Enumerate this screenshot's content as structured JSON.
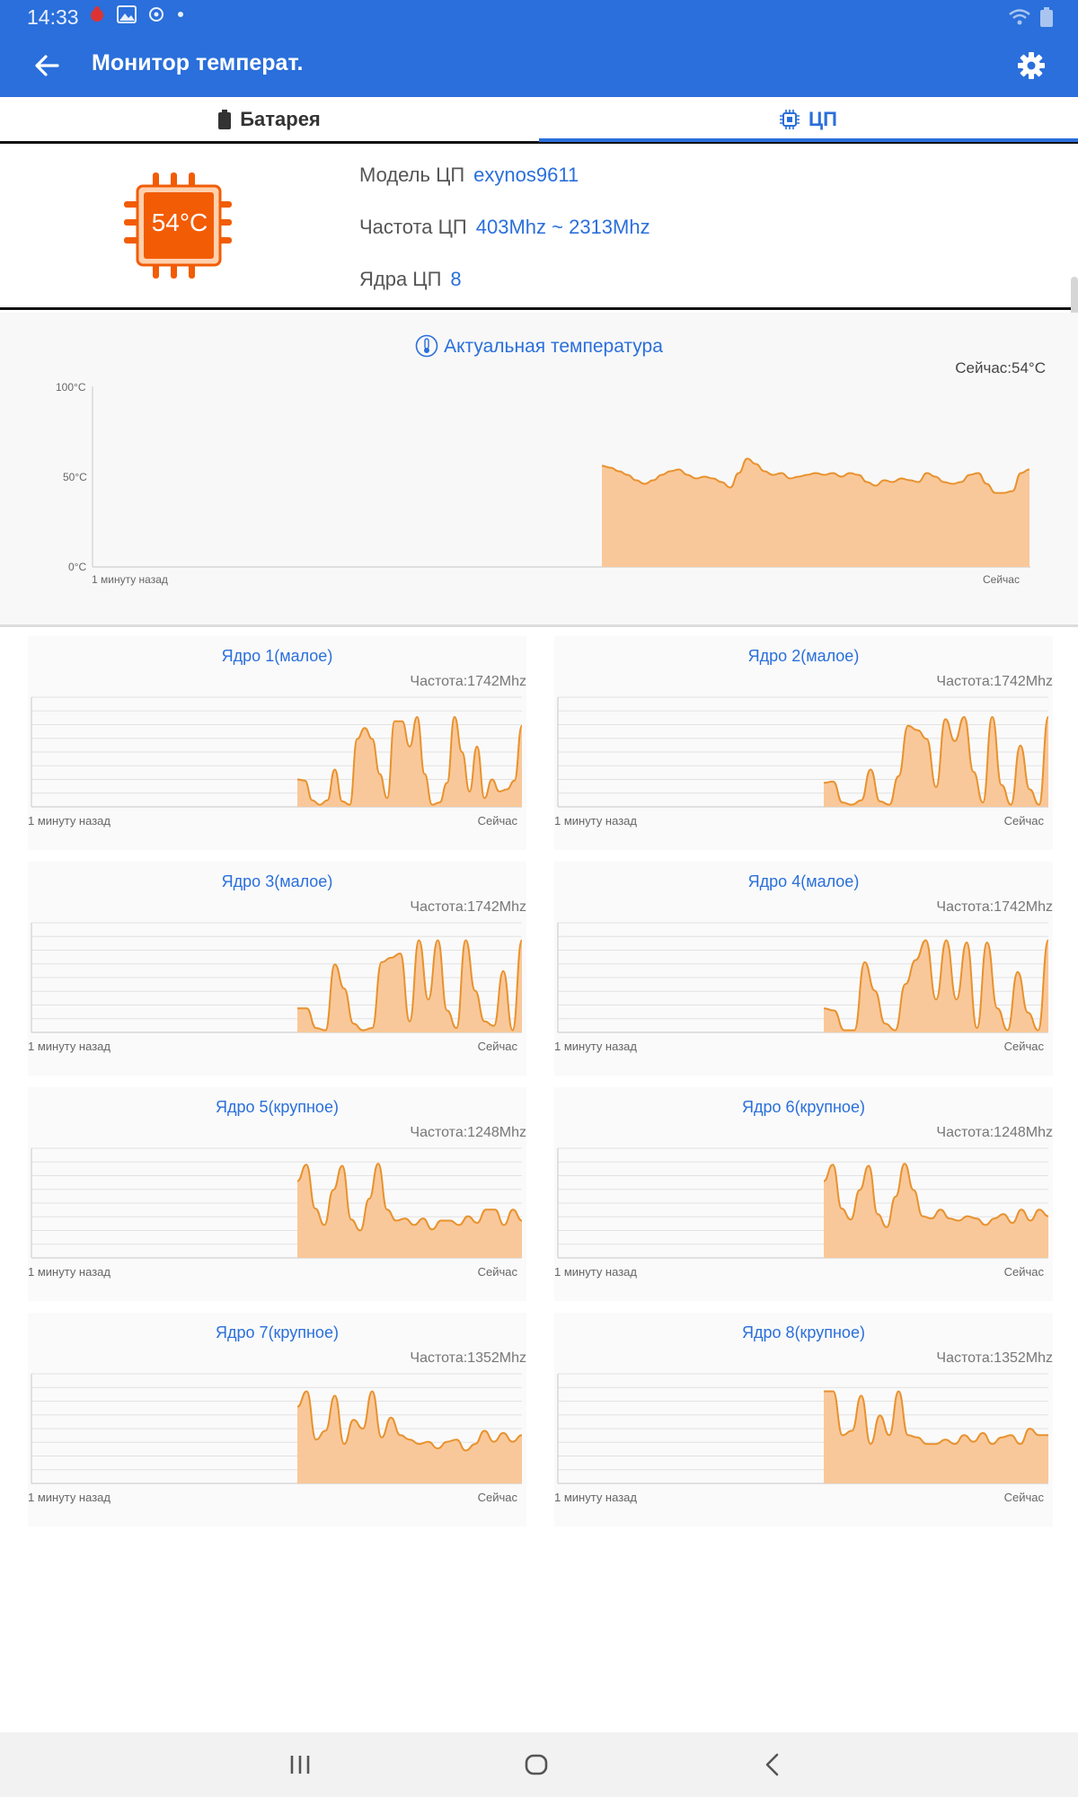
{
  "status": {
    "time": "14:33"
  },
  "header": {
    "title": "Монитор температ."
  },
  "tabs": [
    {
      "label": "Батарея",
      "active": false
    },
    {
      "label": "ЦП",
      "active": true
    }
  ],
  "cpu": {
    "temp_badge": "54°C",
    "model_label": "Модель ЦП",
    "model": "exynos9611",
    "freq_label": "Частота ЦП",
    "freq": "403Mhz ~ 2313Mhz",
    "cores_label": "Ядра ЦП",
    "cores": "8"
  },
  "temperature": {
    "title": "Актуальная температура",
    "now": "Сейчас:54°C",
    "y_ticks": [
      "100°C",
      "50°C",
      "0°C"
    ],
    "x_start": "1 минуту назад",
    "x_end": "Сейчас"
  },
  "chart_data": [
    {
      "type": "area",
      "title": "Актуальная температура",
      "ylim": [
        0,
        100
      ],
      "x_range": [
        "1 минуту назад",
        "Сейчас"
      ],
      "values": [
        56,
        55,
        53,
        51,
        48,
        46,
        48,
        51,
        53,
        54,
        51,
        49,
        50,
        49,
        47,
        44,
        52,
        60,
        57,
        53,
        51,
        52,
        49,
        50,
        51,
        52,
        51,
        52,
        50,
        52,
        51,
        47,
        45,
        48,
        47,
        49,
        48,
        47,
        52,
        50,
        47,
        46,
        47,
        51,
        52,
        46,
        41,
        41,
        42,
        52,
        54
      ],
      "color": "#f9c89a"
    },
    {
      "type": "area",
      "title": "Ядро 1(малое)",
      "freq": "Частота:1742Mhz",
      "values": [
        25,
        24,
        6,
        2,
        6,
        34,
        5,
        2,
        62,
        72,
        62,
        30,
        8,
        78,
        78,
        55,
        82,
        30,
        2,
        4,
        22,
        82,
        50,
        14,
        55,
        8,
        25,
        14,
        16,
        24,
        74
      ]
    },
    {
      "type": "area",
      "title": "Ядро 2(малое)",
      "freq": "Частота:1742Mhz",
      "values": [
        22,
        23,
        4,
        2,
        6,
        34,
        5,
        2,
        28,
        74,
        70,
        62,
        18,
        80,
        60,
        82,
        32,
        4,
        82,
        20,
        2,
        56,
        16,
        2,
        82
      ]
    },
    {
      "type": "area",
      "title": "Ядро 3(малое)",
      "freq": "Частота:1742Mhz",
      "values": [
        22,
        22,
        4,
        2,
        62,
        40,
        8,
        2,
        4,
        64,
        68,
        72,
        10,
        84,
        30,
        84,
        20,
        4,
        84,
        38,
        10,
        6,
        56,
        2,
        84
      ]
    },
    {
      "type": "area",
      "title": "Ядро 4(малое)",
      "freq": "Частота:1742Mhz",
      "values": [
        22,
        20,
        2,
        2,
        64,
        38,
        8,
        2,
        44,
        66,
        84,
        30,
        84,
        30,
        82,
        4,
        82,
        22,
        2,
        55,
        18,
        2,
        84
      ]
    },
    {
      "type": "area",
      "title": "Ядро 5(крупное)",
      "freq": "Частота:1248Mhz",
      "values": [
        70,
        85,
        45,
        30,
        62,
        84,
        35,
        25,
        54,
        86,
        44,
        34,
        36,
        30,
        36,
        26,
        34,
        34,
        30,
        38,
        32,
        44,
        44,
        30,
        44,
        34
      ]
    },
    {
      "type": "area",
      "title": "Ядро 6(крупное)",
      "freq": "Частота:1248Mhz",
      "values": [
        70,
        85,
        45,
        35,
        62,
        84,
        40,
        28,
        56,
        86,
        62,
        38,
        36,
        44,
        36,
        34,
        38,
        36,
        30,
        36,
        40,
        32,
        44,
        34,
        44,
        38
      ]
    },
    {
      "type": "area",
      "title": "Ядро 7(крупное)",
      "freq": "Частота:1352Mhz",
      "values": [
        70,
        84,
        40,
        48,
        80,
        36,
        58,
        50,
        84,
        42,
        60,
        44,
        40,
        36,
        38,
        32,
        38,
        40,
        30,
        36,
        48,
        38,
        46,
        38,
        44
      ]
    },
    {
      "type": "area",
      "title": "Ядро 8(крупное)",
      "freq": "Частота:1352Mhz",
      "values": [
        84,
        84,
        44,
        48,
        80,
        36,
        62,
        44,
        84,
        44,
        42,
        36,
        36,
        40,
        36,
        44,
        38,
        46,
        36,
        42,
        44,
        36,
        50,
        44,
        44
      ]
    }
  ],
  "core_axis": {
    "x_start": "1 минуту назад",
    "x_end": "Сейчас"
  },
  "cores": [
    {
      "title": "Ядро 1(малое)",
      "freq": "Частота:1742Mhz"
    },
    {
      "title": "Ядро 2(малое)",
      "freq": "Частота:1742Mhz"
    },
    {
      "title": "Ядро 3(малое)",
      "freq": "Частота:1742Mhz"
    },
    {
      "title": "Ядро 4(малое)",
      "freq": "Частота:1742Mhz"
    },
    {
      "title": "Ядро 5(крупное)",
      "freq": "Частота:1248Mhz"
    },
    {
      "title": "Ядро 6(крупное)",
      "freq": "Частота:1248Mhz"
    },
    {
      "title": "Ядро 7(крупное)",
      "freq": "Частота:1352Mhz"
    },
    {
      "title": "Ядро 8(крупное)",
      "freq": "Частота:1352Mhz"
    }
  ],
  "colors": {
    "primary": "#2a6fdb",
    "fill": "#f9c89a",
    "line": "#e8922e",
    "chip": "#f25c05"
  },
  "icons": {
    "back": "arrow-left-icon",
    "settings": "gear-icon",
    "battery": "battery-icon",
    "cpu": "cpu-chip-icon",
    "thermometer": "thermometer-icon"
  }
}
